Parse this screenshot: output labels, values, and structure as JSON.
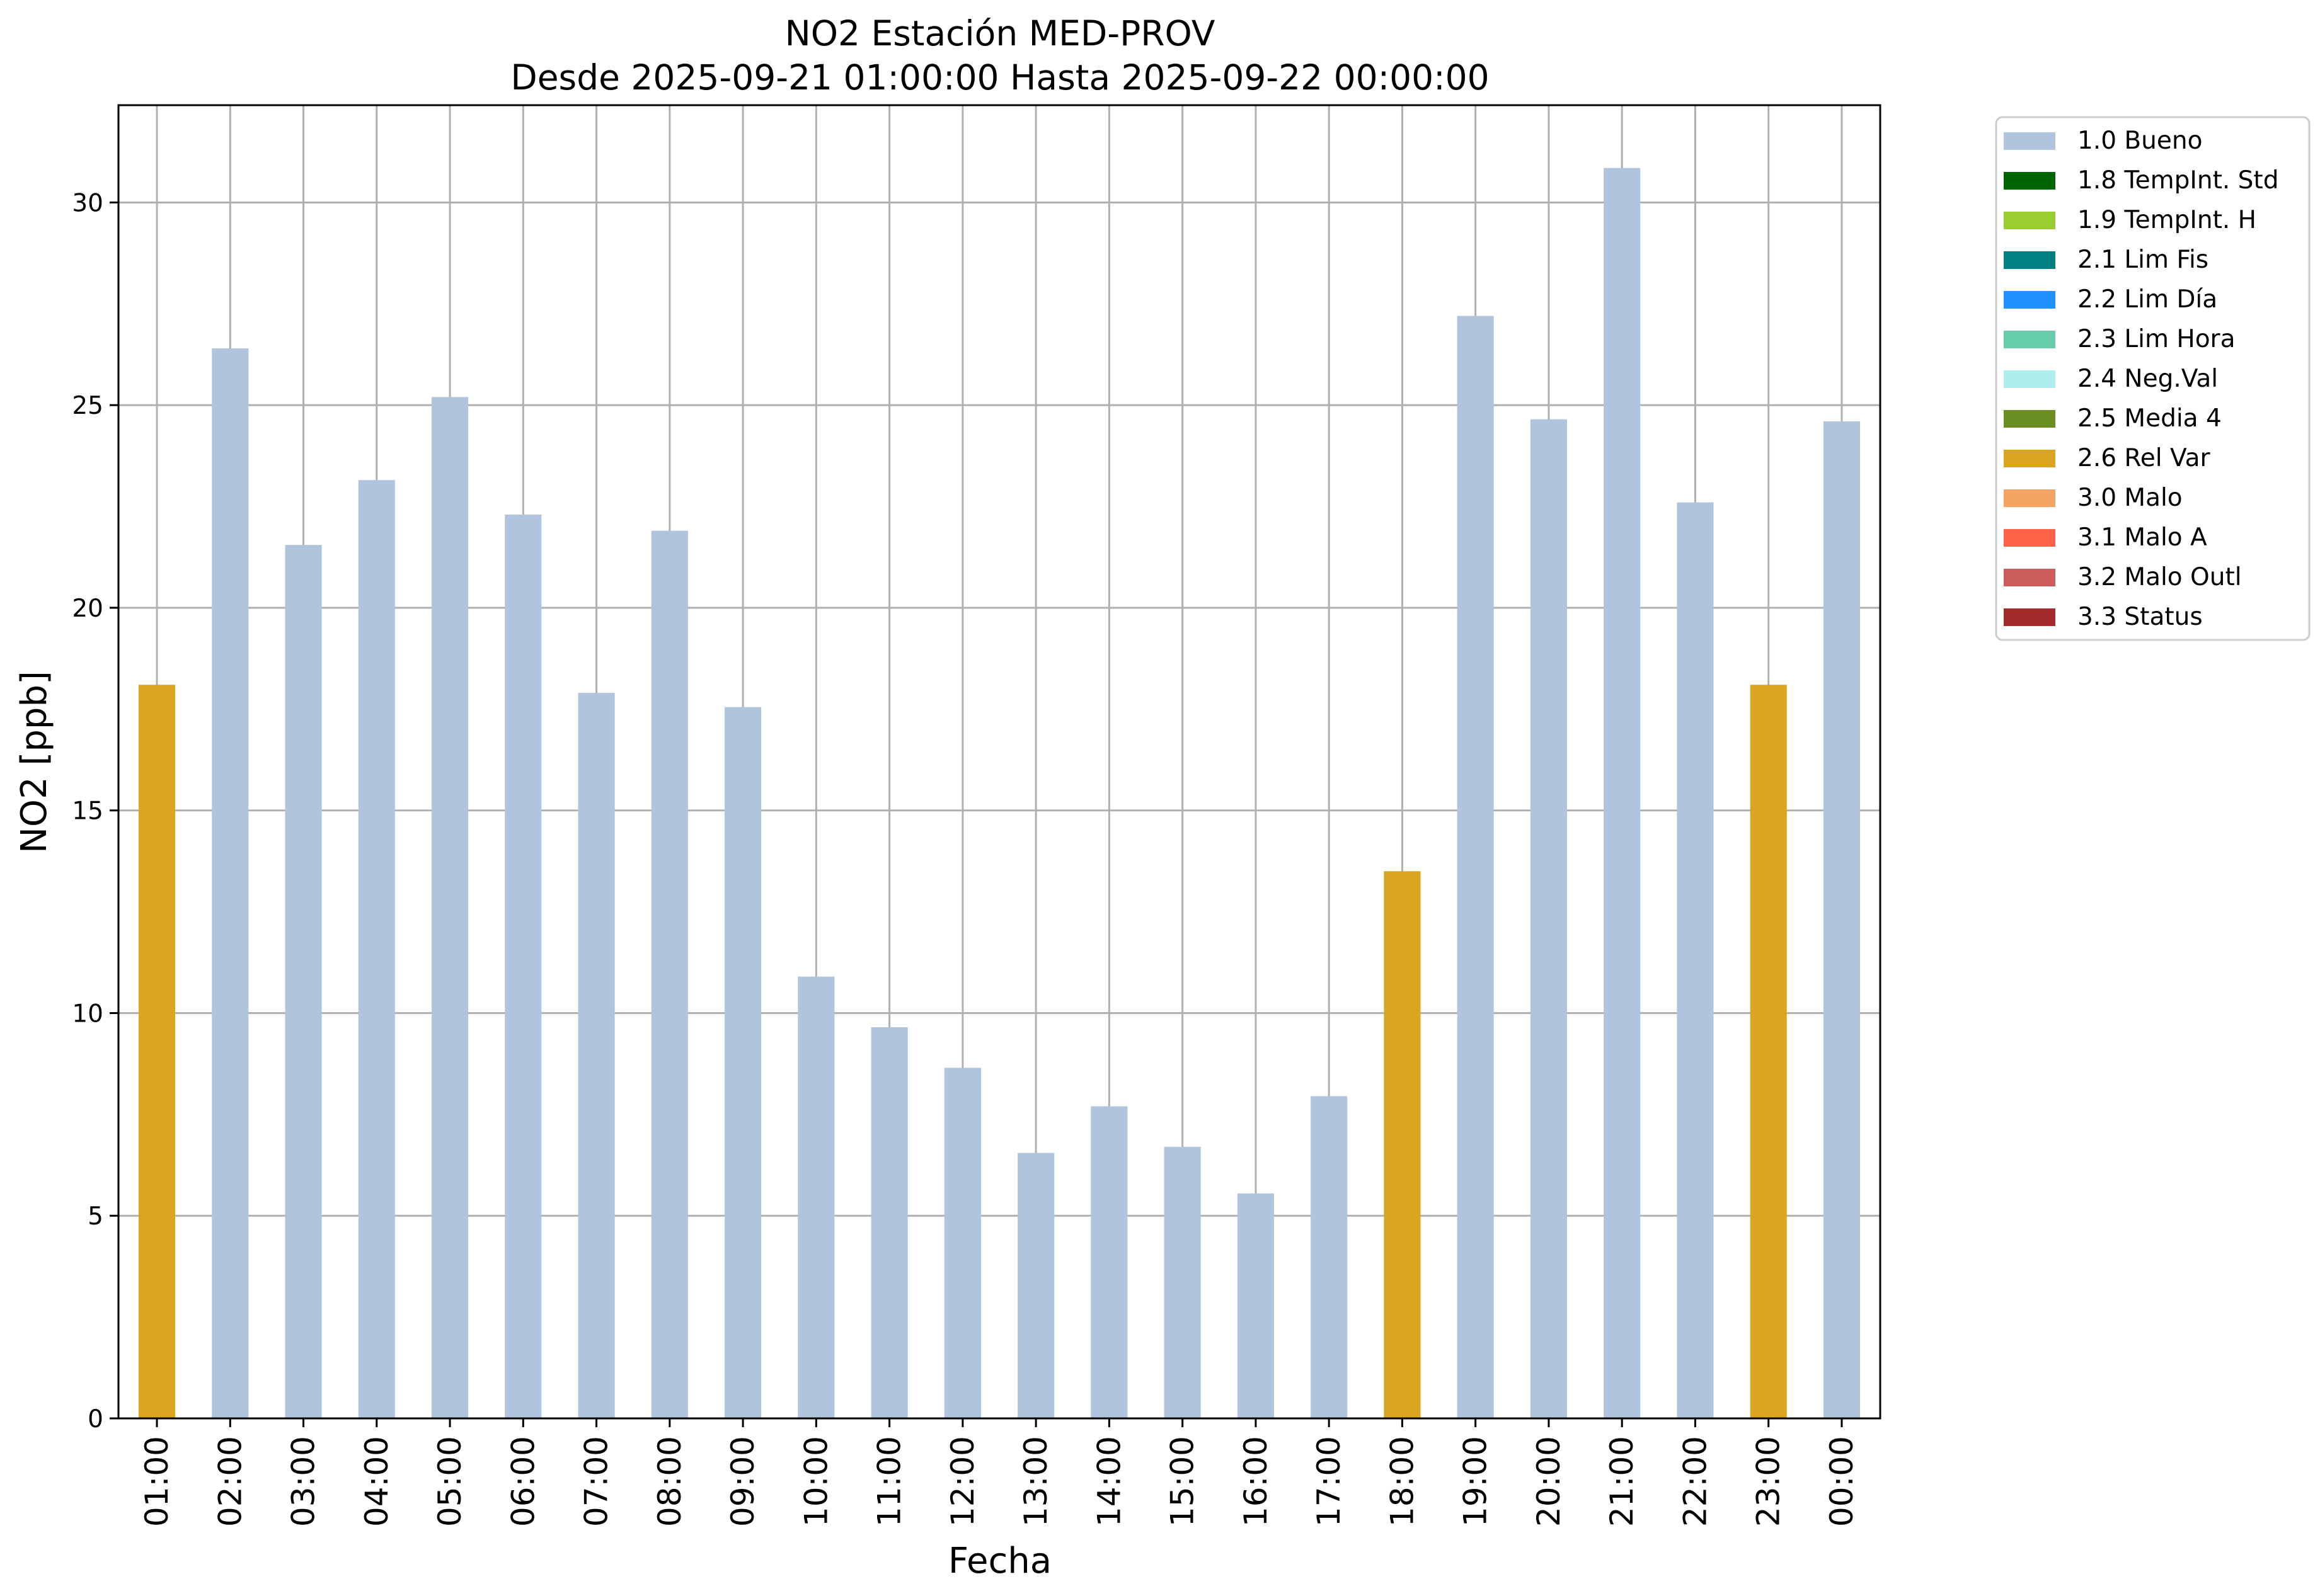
{
  "chart_data": {
    "type": "bar",
    "title": "NO2 Estación MED-PROV",
    "subtitle": "Desde 2025-09-21 01:00:00 Hasta 2025-09-22 00:00:00",
    "xlabel": "Fecha",
    "ylabel": "NO2 [ppb]",
    "ylim": [
      0,
      32.4
    ],
    "yticks": [
      0,
      5,
      10,
      15,
      20,
      25,
      30
    ],
    "grid": true,
    "legend_position": "outside-top-right",
    "categories": [
      "01:00",
      "02:00",
      "03:00",
      "04:00",
      "05:00",
      "06:00",
      "07:00",
      "08:00",
      "09:00",
      "10:00",
      "11:00",
      "12:00",
      "13:00",
      "14:00",
      "15:00",
      "16:00",
      "17:00",
      "18:00",
      "19:00",
      "20:00",
      "21:00",
      "22:00",
      "23:00",
      "00:00"
    ],
    "values": [
      18.1,
      26.4,
      21.55,
      23.15,
      25.2,
      22.3,
      17.9,
      21.9,
      17.55,
      10.9,
      9.65,
      8.65,
      6.55,
      7.7,
      6.7,
      5.55,
      7.95,
      13.5,
      27.2,
      24.65,
      30.85,
      22.6,
      18.1,
      24.6
    ],
    "flags": [
      "2.6 Rel Var",
      "1.0 Bueno",
      "1.0 Bueno",
      "1.0 Bueno",
      "1.0 Bueno",
      "1.0 Bueno",
      "1.0 Bueno",
      "1.0 Bueno",
      "1.0 Bueno",
      "1.0 Bueno",
      "1.0 Bueno",
      "1.0 Bueno",
      "1.0 Bueno",
      "1.0 Bueno",
      "1.0 Bueno",
      "1.0 Bueno",
      "1.0 Bueno",
      "2.6 Rel Var",
      "1.0 Bueno",
      "1.0 Bueno",
      "1.0 Bueno",
      "1.0 Bueno",
      "2.6 Rel Var",
      "1.0 Bueno"
    ],
    "legend": [
      {
        "label": "1.0 Bueno",
        "color": "#b0c4de"
      },
      {
        "label": "1.8 TempInt. Std",
        "color": "#006400"
      },
      {
        "label": "1.9 TempInt. H",
        "color": "#9acd32"
      },
      {
        "label": "2.1 Lim Fis",
        "color": "#008080"
      },
      {
        "label": "2.2 Lim Día",
        "color": "#1e90ff"
      },
      {
        "label": "2.3 Lim Hora",
        "color": "#66cdaa"
      },
      {
        "label": "2.4 Neg.Val",
        "color": "#afeeee"
      },
      {
        "label": "2.5 Media 4",
        "color": "#6b8e23"
      },
      {
        "label": "2.6 Rel Var",
        "color": "#daa520"
      },
      {
        "label": "3.0 Malo",
        "color": "#f4a460"
      },
      {
        "label": "3.1 Malo A",
        "color": "#ff6347"
      },
      {
        "label": "3.2 Malo Outl",
        "color": "#cd5c5c"
      },
      {
        "label": "3.3 Status",
        "color": "#a52a2a"
      }
    ]
  }
}
